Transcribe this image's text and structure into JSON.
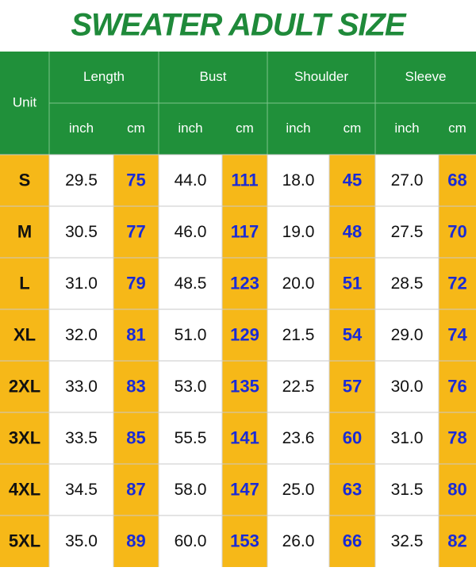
{
  "header": {
    "title": "SWEATER ADULT SIZE"
  },
  "table": {
    "unit_label": "Unit",
    "groups": [
      {
        "label": "Length",
        "sub": [
          "inch",
          "cm"
        ]
      },
      {
        "label": "Bust",
        "sub": [
          "inch",
          "cm"
        ]
      },
      {
        "label": "Shoulder",
        "sub": [
          "inch",
          "cm"
        ]
      },
      {
        "label": "Sleeve",
        "sub": [
          "inch",
          "cm"
        ]
      }
    ],
    "rows": [
      [
        "S",
        "29.5",
        "75",
        "44.0",
        "111",
        "18.0",
        "45",
        "27.0",
        "68"
      ],
      [
        "M",
        "30.5",
        "77",
        "46.0",
        "117",
        "19.0",
        "48",
        "27.5",
        "70"
      ],
      [
        "L",
        "31.0",
        "79",
        "48.5",
        "123",
        "20.0",
        "51",
        "28.5",
        "72"
      ],
      [
        "XL",
        "32.0",
        "81",
        "51.0",
        "129",
        "21.5",
        "54",
        "29.0",
        "74"
      ],
      [
        "2XL",
        "33.0",
        "83",
        "53.0",
        "135",
        "22.5",
        "57",
        "30.0",
        "76"
      ],
      [
        "3XL",
        "33.5",
        "85",
        "55.5",
        "141",
        "23.6",
        "60",
        "31.0",
        "78"
      ],
      [
        "4XL",
        "34.5",
        "87",
        "58.0",
        "147",
        "25.0",
        "63",
        "31.5",
        "80"
      ],
      [
        "5XL",
        "35.0",
        "89",
        "60.0",
        "153",
        "26.0",
        "66",
        "32.5",
        "82"
      ]
    ]
  }
}
